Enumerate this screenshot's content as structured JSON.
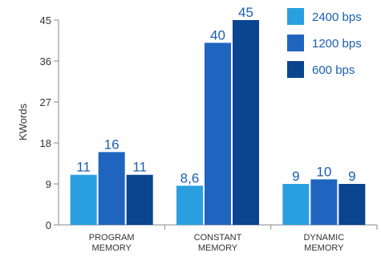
{
  "chart_data": {
    "type": "bar",
    "title": "",
    "xlabel": "",
    "ylabel": "KWords",
    "ylim": [
      0,
      45
    ],
    "yticks": [
      0,
      9,
      18,
      27,
      36,
      45
    ],
    "categories": [
      [
        "PROGRAM",
        "MEMORY"
      ],
      [
        "CONSTANT",
        "MEMORY"
      ],
      [
        "DYNAMIC",
        "MEMORY"
      ]
    ],
    "series": [
      {
        "name": "2400 bps",
        "color": "#2a9fe0",
        "values": [
          11,
          8.6,
          9
        ],
        "labels": [
          "11",
          "8,6",
          "9"
        ]
      },
      {
        "name": "1200 bps",
        "color": "#1f65c0",
        "values": [
          16,
          40,
          10
        ],
        "labels": [
          "16",
          "40",
          "10"
        ]
      },
      {
        "name": "600 bps",
        "color": "#0b4590",
        "values": [
          11,
          45,
          9
        ],
        "labels": [
          "11",
          "45",
          "9"
        ]
      }
    ],
    "legend_position": "top-right",
    "grid": false,
    "data_label_color": "#1a5fb4"
  }
}
